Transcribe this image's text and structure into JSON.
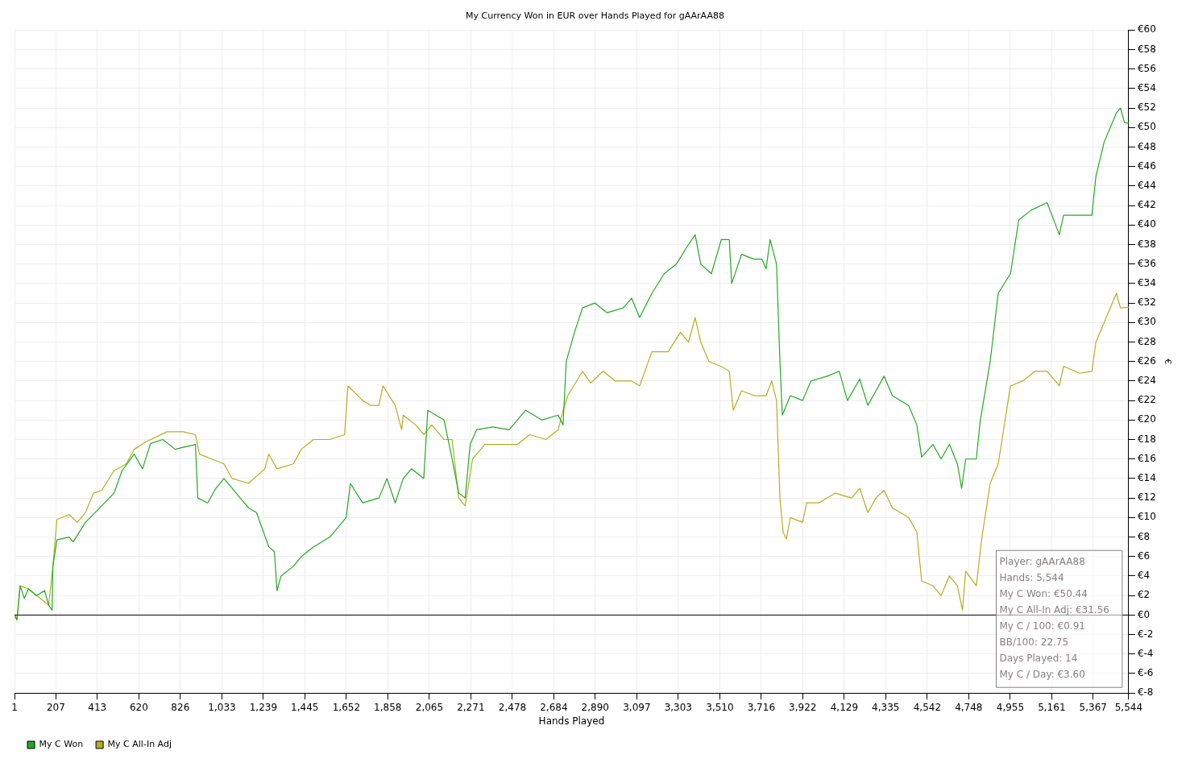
{
  "chart_data": {
    "type": "line",
    "title": "My Currency Won in EUR over Hands Played for gAArAA88",
    "xlabel": "Hands Played",
    "ylabel": "€",
    "xlim": [
      1,
      5544
    ],
    "xticks": [
      1,
      207,
      413,
      620,
      826,
      {
        "value": 1033,
        "label": "1,033"
      },
      {
        "value": 1239,
        "label": "1,239"
      },
      {
        "value": 1445,
        "label": "1,445"
      },
      {
        "value": 1652,
        "label": "1,652"
      },
      {
        "value": 1858,
        "label": "1,858"
      },
      {
        "value": 2065,
        "label": "2,065"
      },
      {
        "value": 2271,
        "label": "2,271"
      },
      {
        "value": 2478,
        "label": "2,478"
      },
      {
        "value": 2684,
        "label": "2,684"
      },
      {
        "value": 2890,
        "label": "2,890"
      },
      {
        "value": 3097,
        "label": "3,097"
      },
      {
        "value": 3303,
        "label": "3,303"
      },
      {
        "value": 3510,
        "label": "3,510"
      },
      {
        "value": 3716,
        "label": "3,716"
      },
      {
        "value": 3922,
        "label": "3,922"
      },
      {
        "value": 4129,
        "label": "4,129"
      },
      {
        "value": 4335,
        "label": "4,335"
      },
      {
        "value": 4542,
        "label": "4,542"
      },
      {
        "value": 4748,
        "label": "4,748"
      },
      {
        "value": 4955,
        "label": "4,955"
      },
      {
        "value": 5161,
        "label": "5,161"
      },
      {
        "value": 5367,
        "label": "5,367"
      },
      {
        "value": 5544,
        "label": "5,544"
      }
    ],
    "ylim": [
      -8,
      60
    ],
    "yticks": [
      {
        "value": -8,
        "label": "€-8"
      },
      {
        "value": -6,
        "label": "€-6"
      },
      {
        "value": -4,
        "label": "€-4"
      },
      {
        "value": -2,
        "label": "€-2"
      },
      {
        "value": 0,
        "label": "€0"
      },
      {
        "value": 2,
        "label": "€2"
      },
      {
        "value": 4,
        "label": "€4"
      },
      {
        "value": 6,
        "label": "€6"
      },
      {
        "value": 8,
        "label": "€8"
      },
      {
        "value": 10,
        "label": "€10"
      },
      {
        "value": 12,
        "label": "€12"
      },
      {
        "value": 14,
        "label": "€14"
      },
      {
        "value": 16,
        "label": "€16"
      },
      {
        "value": 18,
        "label": "€18"
      },
      {
        "value": 20,
        "label": "€20"
      },
      {
        "value": 22,
        "label": "€22"
      },
      {
        "value": 24,
        "label": "€24"
      },
      {
        "value": 26,
        "label": "€26"
      },
      {
        "value": 28,
        "label": "€28"
      },
      {
        "value": 30,
        "label": "€30"
      },
      {
        "value": 32,
        "label": "€32"
      },
      {
        "value": 34,
        "label": "€34"
      },
      {
        "value": 36,
        "label": "€36"
      },
      {
        "value": 38,
        "label": "€38"
      },
      {
        "value": 40,
        "label": "€40"
      },
      {
        "value": 42,
        "label": "€42"
      },
      {
        "value": 44,
        "label": "€44"
      },
      {
        "value": 46,
        "label": "€46"
      },
      {
        "value": 48,
        "label": "€48"
      },
      {
        "value": 50,
        "label": "€50"
      },
      {
        "value": 52,
        "label": "€52"
      },
      {
        "value": 54,
        "label": "€54"
      },
      {
        "value": 56,
        "label": "€56"
      },
      {
        "value": 58,
        "label": "€58"
      },
      {
        "value": 60,
        "label": "€60"
      }
    ],
    "grid": true,
    "legend": "bottom left",
    "marker": "none",
    "line_style": "solid",
    "ref_lines": [
      {
        "axis": "y",
        "value": 0,
        "color": "#000000"
      }
    ],
    "annotations": [
      "Player: gAArAA88",
      "Hands: 5,544",
      "My C Won: €50.44",
      "My C All-In Adj: €31.56",
      "My C / 100: €0.91",
      "BB/100: 22.75",
      "Days Played: 14",
      "My C / Day: €3.60"
    ],
    "series": [
      {
        "name": "My C Won",
        "color": "#22aa22",
        "x": [
          1,
          13,
          29,
          50,
          70,
          110,
          151,
          171,
          188,
          192,
          212,
          273,
          293,
          354,
          435,
          496,
          536,
          597,
          638,
          678,
          739,
          800,
          901,
          913,
          962,
          1003,
          1043,
          1084,
          1124,
          1165,
          1205,
          1266,
          1294,
          1307,
          1327,
          1388,
          1428,
          1489,
          1570,
          1651,
          1672,
          1733,
          1814,
          1854,
          1895,
          1935,
          1976,
          2037,
          2057,
          2138,
          2178,
          2211,
          2243,
          2268,
          2300,
          2381,
          2462,
          2544,
          2624,
          2706,
          2730,
          2746,
          2787,
          2827,
          2888,
          2949,
          3030,
          3071,
          3111,
          3172,
          3233,
          3294,
          3354,
          3387,
          3415,
          3468,
          3517,
          3557,
          3569,
          3618,
          3679,
          3719,
          3740,
          3760,
          3792,
          3809,
          3821,
          3861,
          3922,
          3963,
          4044,
          4104,
          4145,
          4206,
          4246,
          4287,
          4327,
          4368,
          4449,
          4490,
          4514,
          4570,
          4611,
          4652,
          4692,
          4713,
          4733,
          4786,
          4806,
          4855,
          4895,
          4956,
          4997,
          5057,
          5138,
          5199,
          5220,
          5300,
          5361,
          5381,
          5422,
          5483,
          5503,
          5523,
          5544
        ],
        "values": [
          0,
          -0.5,
          3,
          1.7,
          2.7,
          2,
          2.5,
          1,
          0.5,
          5,
          7.7,
          8,
          7.5,
          9.5,
          11.2,
          12.5,
          14.8,
          16.5,
          15,
          17.6,
          18,
          17,
          17.5,
          12,
          11.5,
          13,
          14,
          13,
          12,
          11,
          10.5,
          7,
          6.5,
          2.5,
          4,
          5,
          6,
          7,
          8,
          10,
          13.5,
          11.5,
          12,
          14,
          11.5,
          14,
          15,
          14,
          21,
          20,
          16,
          12.5,
          12,
          17.5,
          19,
          19.3,
          19,
          21,
          20,
          20.5,
          19.5,
          26,
          29,
          31.5,
          32,
          31,
          31.5,
          32.5,
          30.5,
          33,
          35,
          36,
          38,
          39,
          36,
          35,
          38.5,
          38.5,
          34,
          37,
          36.5,
          36.5,
          35.5,
          38.5,
          36,
          26,
          20.5,
          22.5,
          22,
          24,
          24.5,
          25,
          22,
          24.2,
          21.5,
          23,
          24.5,
          22.5,
          21.5,
          19.5,
          16.2,
          17.5,
          16,
          17.5,
          15.5,
          13,
          16,
          16,
          20,
          26,
          33,
          35,
          40.5,
          41.5,
          42.3,
          39,
          41,
          41,
          41,
          45,
          48.5,
          51.5,
          52,
          50.5,
          50.44
        ]
      },
      {
        "name": "My C All-In Adj",
        "color": "#b0b020",
        "x": [
          1,
          13,
          29,
          70,
          171,
          192,
          212,
          273,
          313,
          354,
          394,
          435,
          496,
          557,
          597,
          658,
          759,
          840,
          901,
          921,
          982,
          1043,
          1084,
          1165,
          1246,
          1266,
          1307,
          1388,
          1428,
          1489,
          1570,
          1643,
          1660,
          1733,
          1773,
          1814,
          1834,
          1895,
          1927,
          1935,
          1996,
          2037,
          2077,
          2138,
          2178,
          2211,
          2243,
          2280,
          2341,
          2401,
          2503,
          2564,
          2645,
          2706,
          2730,
          2754,
          2827,
          2868,
          2929,
          2990,
          3071,
          3111,
          3172,
          3253,
          3314,
          3354,
          3387,
          3415,
          3456,
          3517,
          3557,
          3577,
          3618,
          3679,
          3740,
          3768,
          3792,
          3809,
          3825,
          3841,
          3861,
          3922,
          3942,
          4003,
          4084,
          4165,
          4206,
          4246,
          4287,
          4327,
          4368,
          4449,
          4490,
          4514,
          4570,
          4611,
          4652,
          4692,
          4717,
          4733,
          4786,
          4814,
          4855,
          4895,
          4956,
          5017,
          5078,
          5138,
          5199,
          5220,
          5300,
          5361,
          5381,
          5422,
          5483,
          5503,
          5544
        ],
        "values": [
          0,
          -0.5,
          3,
          2.7,
          1,
          5,
          9.8,
          10.3,
          9.5,
          10.5,
          12.5,
          12.8,
          14.8,
          15.5,
          17,
          17.8,
          18.8,
          18.8,
          18.5,
          16.5,
          16,
          15.5,
          14,
          13.5,
          15,
          16.5,
          15,
          15.5,
          17,
          18,
          18,
          18.5,
          23.5,
          22,
          21.5,
          21.5,
          23.5,
          21.5,
          19,
          20.5,
          19.5,
          18.5,
          19.5,
          18,
          18,
          12,
          11.2,
          16,
          17.5,
          17.5,
          17.5,
          18.5,
          18,
          19,
          21,
          22.5,
          25,
          23.8,
          25,
          24,
          24,
          23.5,
          27,
          27,
          29,
          28,
          30.5,
          28,
          26,
          25.5,
          25,
          21,
          23,
          22.5,
          22.5,
          24,
          22,
          12,
          8.5,
          7.8,
          10,
          9.5,
          11.5,
          11.5,
          12.5,
          12,
          13,
          10.5,
          12,
          12.8,
          11,
          10,
          8.5,
          3.5,
          3,
          2,
          4,
          3,
          0.5,
          4.5,
          3,
          8,
          13.5,
          15.5,
          23.5,
          24,
          25,
          25,
          23.5,
          25.5,
          24.8,
          25,
          28,
          30,
          33,
          31.5,
          31.56
        ]
      }
    ]
  }
}
